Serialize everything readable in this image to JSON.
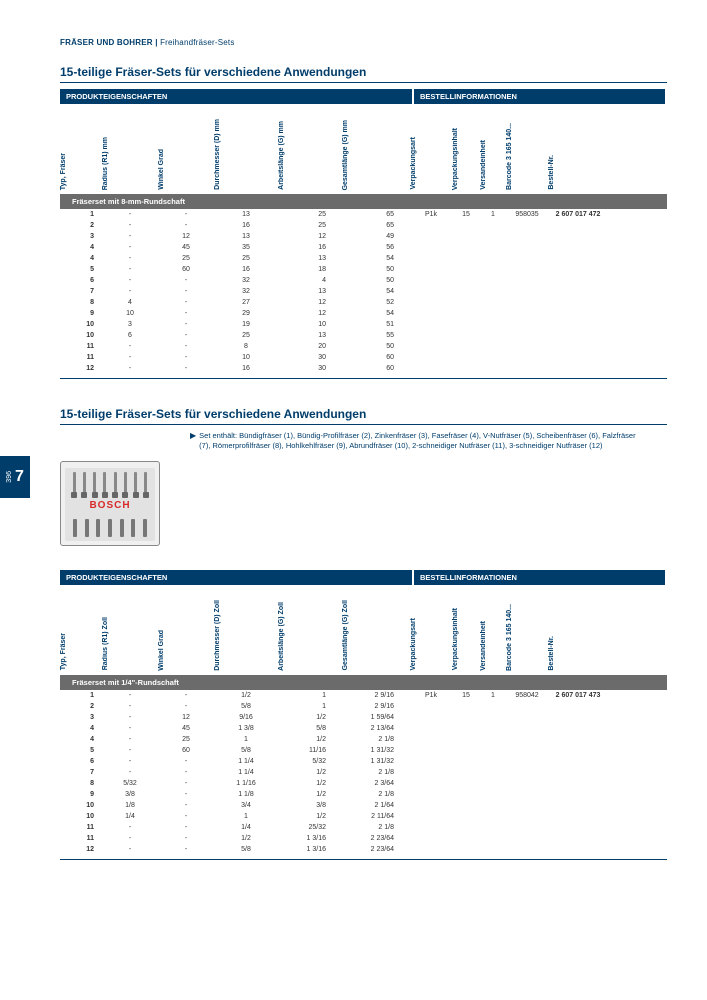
{
  "breadcrumb": {
    "main": "FRÄSER UND BOHRER",
    "sub": "Freihandfräser-Sets"
  },
  "sideTab": {
    "page": "396",
    "chapter": "7"
  },
  "productImage": {
    "brand": "BOSCH"
  },
  "section1": {
    "title": "15-teilige Fräser-Sets für verschiedene Anwendungen",
    "headerProdukt": "PRODUKTEIGENSCHAFTEN",
    "headerBestell": "BESTELLINFORMATIONEN",
    "columns": [
      "Typ, Fräser",
      "Radius (R1) mm",
      "Winkel Grad",
      "Durchmesser (D) mm",
      "Arbeitslänge (G) mm",
      "Gesamtlänge (G) mm",
      "Verpackungsart",
      "Verpackungsinhalt",
      "Versandeinheit",
      "Barcode 3 165 140...",
      "Bestell-Nr."
    ],
    "subheader": "Fräserset mit 8-mm-Rundschaft",
    "rows": [
      [
        "1",
        "-",
        "-",
        "13",
        "25",
        "65",
        "P1k",
        "15",
        "1",
        "958035",
        "2 607 017 472"
      ],
      [
        "2",
        "-",
        "-",
        "16",
        "25",
        "65",
        "",
        "",
        "",
        "",
        ""
      ],
      [
        "3",
        "-",
        "12",
        "13",
        "12",
        "49",
        "",
        "",
        "",
        "",
        ""
      ],
      [
        "4",
        "-",
        "45",
        "35",
        "16",
        "56",
        "",
        "",
        "",
        "",
        ""
      ],
      [
        "4",
        "-",
        "25",
        "25",
        "13",
        "54",
        "",
        "",
        "",
        "",
        ""
      ],
      [
        "5",
        "-",
        "60",
        "16",
        "18",
        "50",
        "",
        "",
        "",
        "",
        ""
      ],
      [
        "6",
        "-",
        "-",
        "32",
        "4",
        "50",
        "",
        "",
        "",
        "",
        ""
      ],
      [
        "7",
        "-",
        "-",
        "32",
        "13",
        "54",
        "",
        "",
        "",
        "",
        ""
      ],
      [
        "8",
        "4",
        "-",
        "27",
        "12",
        "52",
        "",
        "",
        "",
        "",
        ""
      ],
      [
        "9",
        "10",
        "-",
        "29",
        "12",
        "54",
        "",
        "",
        "",
        "",
        ""
      ],
      [
        "10",
        "3",
        "-",
        "19",
        "10",
        "51",
        "",
        "",
        "",
        "",
        ""
      ],
      [
        "10",
        "6",
        "-",
        "25",
        "13",
        "55",
        "",
        "",
        "",
        "",
        ""
      ],
      [
        "11",
        "-",
        "-",
        "8",
        "20",
        "50",
        "",
        "",
        "",
        "",
        ""
      ],
      [
        "11",
        "-",
        "-",
        "10",
        "30",
        "60",
        "",
        "",
        "",
        "",
        ""
      ],
      [
        "12",
        "-",
        "-",
        "16",
        "30",
        "60",
        "",
        "",
        "",
        "",
        ""
      ]
    ]
  },
  "section2": {
    "title": "15-teilige Fräser-Sets für verschiedene Anwendungen",
    "description": "Set enthält: Bündigfräser (1), Bündig-Profilfräser (2), Zinkenfräser (3), Fasefräser (4), V-Nutfräser (5), Scheibenfräser (6), Falzfräser (7), Römerprofilfräser (8), Hohlkehlfräser (9), Abrundfräser (10), 2-schneidiger Nutfräser (11), 3-schneidiger Nutfräser (12)",
    "headerProdukt": "PRODUKTEIGENSCHAFTEN",
    "headerBestell": "BESTELLINFORMATIONEN",
    "columns": [
      "Typ, Fräser",
      "Radius (R1) Zoll",
      "Winkel Grad",
      "Durchmesser (D) Zoll",
      "Arbeitslänge (G) Zoll",
      "Gesamtlänge (G) Zoll",
      "Verpackungsart",
      "Verpackungsinhalt",
      "Versandeinheit",
      "Barcode 3 165 140...",
      "Bestell-Nr."
    ],
    "subheader": "Fräserset mit 1/4\"-Rundschaft",
    "rows": [
      [
        "1",
        "-",
        "-",
        "1/2",
        "1",
        "2 9/16",
        "P1k",
        "15",
        "1",
        "958042",
        "2 607 017 473"
      ],
      [
        "2",
        "-",
        "-",
        "5/8",
        "1",
        "2 9/16",
        "",
        "",
        "",
        "",
        ""
      ],
      [
        "3",
        "-",
        "12",
        "9/16",
        "1/2",
        "1 59/64",
        "",
        "",
        "",
        "",
        ""
      ],
      [
        "4",
        "-",
        "45",
        "1 3/8",
        "5/8",
        "2 13/64",
        "",
        "",
        "",
        "",
        ""
      ],
      [
        "4",
        "-",
        "25",
        "1",
        "1/2",
        "2 1/8",
        "",
        "",
        "",
        "",
        ""
      ],
      [
        "5",
        "-",
        "60",
        "5/8",
        "11/16",
        "1 31/32",
        "",
        "",
        "",
        "",
        ""
      ],
      [
        "6",
        "-",
        "-",
        "1 1/4",
        "5/32",
        "1 31/32",
        "",
        "",
        "",
        "",
        ""
      ],
      [
        "7",
        "-",
        "-",
        "1 1/4",
        "1/2",
        "2 1/8",
        "",
        "",
        "",
        "",
        ""
      ],
      [
        "8",
        "5/32",
        "-",
        "1 1/16",
        "1/2",
        "2 3/64",
        "",
        "",
        "",
        "",
        ""
      ],
      [
        "9",
        "3/8",
        "-",
        "1 1/8",
        "1/2",
        "2 1/8",
        "",
        "",
        "",
        "",
        ""
      ],
      [
        "10",
        "1/8",
        "-",
        "3/4",
        "3/8",
        "2 1/64",
        "",
        "",
        "",
        "",
        ""
      ],
      [
        "10",
        "1/4",
        "-",
        "1",
        "1/2",
        "2 11/64",
        "",
        "",
        "",
        "",
        ""
      ],
      [
        "11",
        "-",
        "-",
        "1/4",
        "25/32",
        "2 1/8",
        "",
        "",
        "",
        "",
        ""
      ],
      [
        "11",
        "-",
        "-",
        "1/2",
        "1 3/16",
        "2 23/64",
        "",
        "",
        "",
        "",
        ""
      ],
      [
        "12",
        "-",
        "-",
        "5/8",
        "1 3/16",
        "2 23/64",
        "",
        "",
        "",
        "",
        ""
      ]
    ]
  }
}
